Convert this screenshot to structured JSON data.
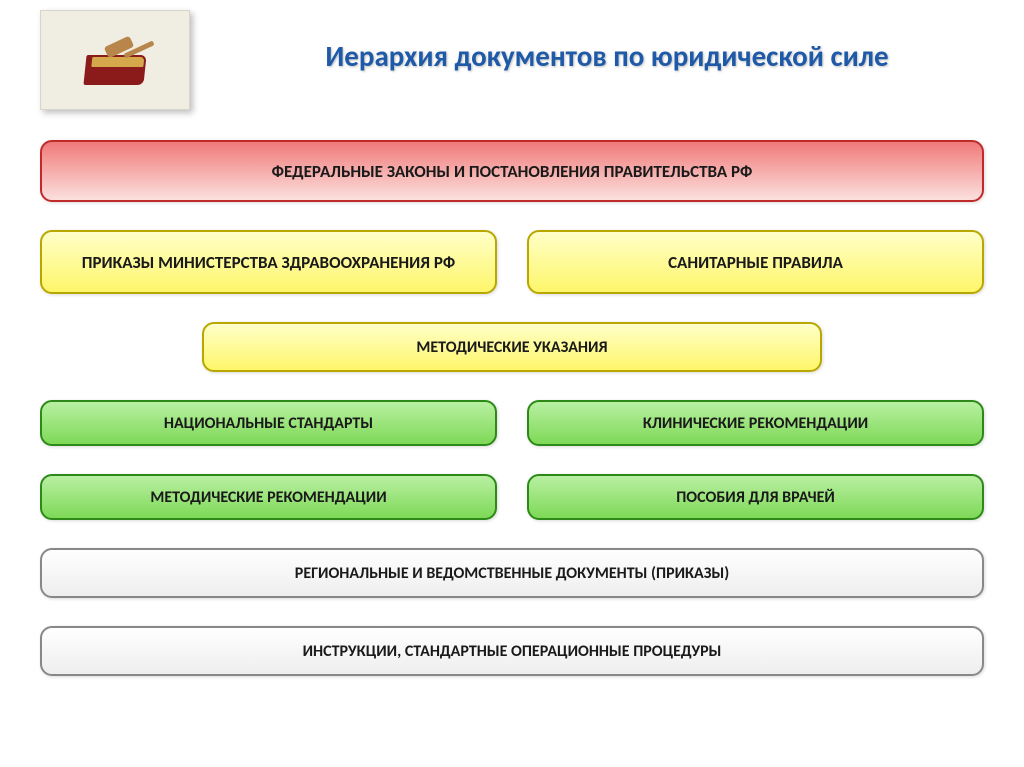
{
  "title": "Иерархия документов по юридической силе",
  "styling": {
    "title_color": "#1f5aa8",
    "title_fontsize": 29,
    "box_border_radius": 12,
    "row_gap": 28,
    "col_gap": 30,
    "label_fontsize": 17,
    "label_fontsize_small": 16,
    "colors": {
      "red_top": "#f07a7a",
      "red_bottom": "#fbe0dd",
      "red_border": "#c02a2a",
      "yellow_top": "#ffffc8",
      "yellow_bottom": "#fef66a",
      "yellow_border": "#b7a700",
      "green_top": "#b9f0a2",
      "green_bottom": "#7ed957",
      "green_border": "#2d8a18",
      "white_top": "#ffffff",
      "white_bottom": "#eeeeee",
      "white_border": "#888888",
      "text": "#1a1a1a"
    }
  },
  "rows": [
    {
      "layout": "full",
      "height": 62,
      "color": "red",
      "items": [
        {
          "label": "ФЕДЕРАЛЬНЫЕ ЗАКОНЫ И ПОСТАНОВЛЕНИЯ ПРАВИТЕЛЬСТВА РФ"
        }
      ]
    },
    {
      "layout": "split",
      "height": 64,
      "color": "yellow",
      "items": [
        {
          "label": "ПРИКАЗЫ МИНИСТЕРСТВА ЗДРАВООХРАНЕНИЯ РФ"
        },
        {
          "label": "САНИТАРНЫЕ ПРАВИЛА"
        }
      ]
    },
    {
      "layout": "center",
      "height": 50,
      "color": "yellow",
      "items": [
        {
          "label": "МЕТОДИЧЕСКИЕ УКАЗАНИЯ"
        }
      ]
    },
    {
      "layout": "split",
      "height": 46,
      "color": "green",
      "items": [
        {
          "label": "НАЦИОНАЛЬНЫЕ СТАНДАРТЫ"
        },
        {
          "label": "КЛИНИЧЕСКИЕ РЕКОМЕНДАЦИИ"
        }
      ]
    },
    {
      "layout": "split",
      "height": 46,
      "color": "green",
      "items": [
        {
          "label": "МЕТОДИЧЕСКИЕ РЕКОМЕНДАЦИИ"
        },
        {
          "label": "ПОСОБИЯ ДЛЯ ВРАЧЕЙ"
        }
      ]
    },
    {
      "layout": "full",
      "height": 50,
      "color": "white",
      "items": [
        {
          "label": "РЕГИОНАЛЬНЫЕ И ВЕДОМСТВЕННЫЕ ДОКУМЕНТЫ (ПРИКАЗЫ)"
        }
      ]
    },
    {
      "layout": "full",
      "height": 50,
      "color": "white",
      "items": [
        {
          "label": "ИНСТРУКЦИИ, СТАНДАРТНЫЕ ОПЕРАЦИОННЫЕ ПРОЦЕДУРЫ"
        }
      ]
    }
  ]
}
